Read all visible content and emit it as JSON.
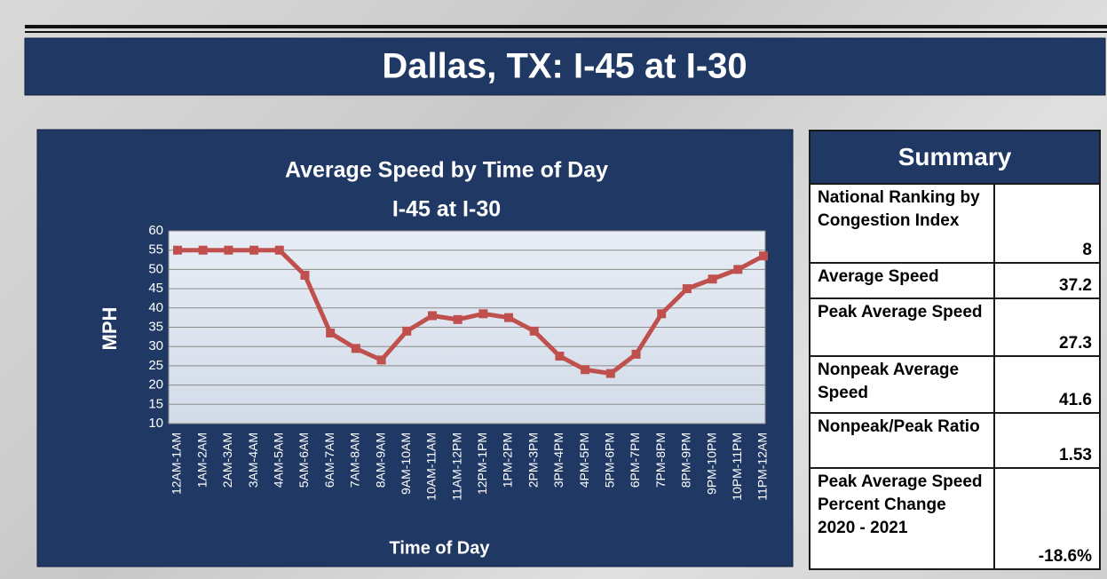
{
  "header": {
    "title": "Dallas, TX: I-45 at I-30"
  },
  "chart_data": {
    "type": "line",
    "title": "Average Speed by Time of Day",
    "subtitle": "I-45 at I-30",
    "xlabel": "Time of Day",
    "ylabel": "MPH",
    "categories": [
      "12AM-1AM",
      "1AM-2AM",
      "2AM-3AM",
      "3AM-4AM",
      "4AM-5AM",
      "5AM-6AM",
      "6AM-7AM",
      "7AM-8AM",
      "8AM-9AM",
      "9AM-10AM",
      "10AM-11AM",
      "11AM-12PM",
      "12PM-1PM",
      "1PM-2PM",
      "2PM-3PM",
      "3PM-4PM",
      "4PM-5PM",
      "5PM-6PM",
      "6PM-7PM",
      "7PM-8PM",
      "8PM-9PM",
      "9PM-10PM",
      "10PM-11PM",
      "11PM-12AM"
    ],
    "series": [
      {
        "color": "#c0504d",
        "values": [
          55,
          55,
          55,
          55,
          55,
          48.5,
          33.5,
          29.5,
          26.5,
          34,
          38,
          37,
          38.5,
          37.5,
          34,
          27.5,
          24,
          23,
          28,
          38.5,
          45,
          47.5,
          50,
          53.5
        ]
      }
    ],
    "ylim": [
      10,
      60
    ],
    "yticks": [
      10,
      15,
      20,
      25,
      30,
      35,
      40,
      45,
      50,
      55,
      60
    ],
    "grid": true
  },
  "summary": {
    "title": "Summary",
    "rows": [
      [
        "National Ranking by Congestion Index",
        "8"
      ],
      [
        "Average Speed",
        "37.2"
      ],
      [
        "Peak Average Speed",
        "27.3"
      ],
      [
        "Nonpeak Average Speed",
        "41.6"
      ],
      [
        "Nonpeak/Peak Ratio",
        "1.53"
      ],
      [
        "Peak Average Speed Percent Change 2020 - 2021",
        "-18.6%"
      ]
    ]
  }
}
